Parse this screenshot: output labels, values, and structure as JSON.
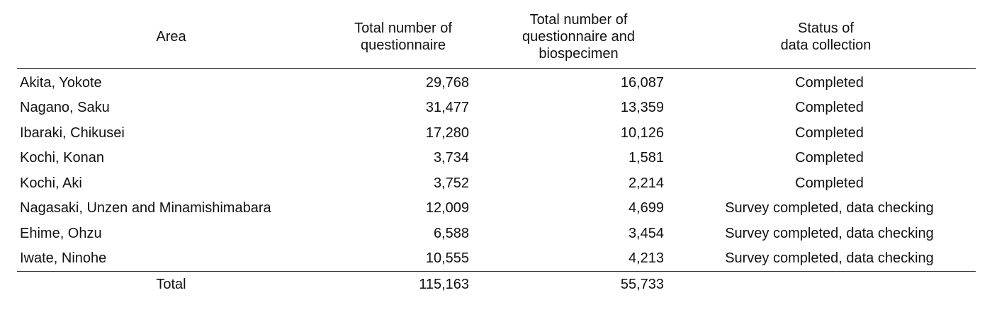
{
  "table": {
    "headers": {
      "area": [
        "Area"
      ],
      "questionnaire": [
        "Total number of",
        "questionnaire"
      ],
      "questionnaire_biospecimen": [
        "Total number of",
        "questionnaire and",
        "biospecimen"
      ],
      "status": [
        "Status of",
        "data collection"
      ]
    },
    "rows": [
      {
        "area": "Akita, Yokote",
        "questionnaire": "29,768",
        "questionnaire_biospecimen": "16,087",
        "status": "Completed"
      },
      {
        "area": "Nagano, Saku",
        "questionnaire": "31,477",
        "questionnaire_biospecimen": "13,359",
        "status": "Completed"
      },
      {
        "area": "Ibaraki, Chikusei",
        "questionnaire": "17,280",
        "questionnaire_biospecimen": "10,126",
        "status": "Completed"
      },
      {
        "area": "Kochi, Konan",
        "questionnaire": "3,734",
        "questionnaire_biospecimen": "1,581",
        "status": "Completed"
      },
      {
        "area": "Kochi, Aki",
        "questionnaire": "3,752",
        "questionnaire_biospecimen": "2,214",
        "status": "Completed"
      },
      {
        "area": "Nagasaki, Unzen and Minamishimabara",
        "questionnaire": "12,009",
        "questionnaire_biospecimen": "4,699",
        "status": "Survey completed, data checking"
      },
      {
        "area": "Ehime, Ohzu",
        "questionnaire": "6,588",
        "questionnaire_biospecimen": "3,454",
        "status": "Survey completed, data checking"
      },
      {
        "area": "Iwate, Ninohe",
        "questionnaire": "10,555",
        "questionnaire_biospecimen": "4,213",
        "status": "Survey completed, data checking"
      }
    ],
    "total": {
      "label": "Total",
      "questionnaire": "115,163",
      "questionnaire_biospecimen": "55,733",
      "status": ""
    }
  }
}
